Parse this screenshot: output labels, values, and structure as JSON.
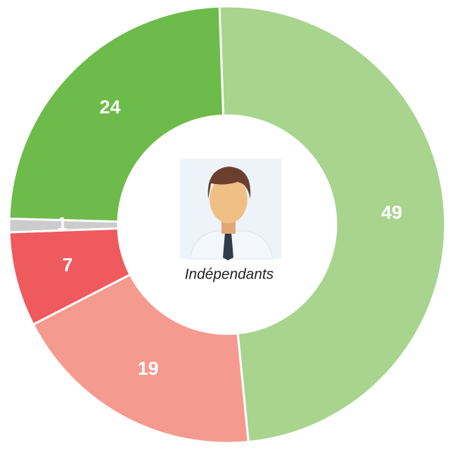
{
  "chart_data": {
    "type": "donut",
    "center_label": "Indépendants",
    "categories": [
      null,
      null,
      null,
      null,
      null
    ],
    "values": [
      49,
      19,
      7,
      1,
      24
    ],
    "colors": [
      "#a8d48e",
      "#f59a8f",
      "#ef5a5e",
      "#cccccc",
      "#6dbb4a"
    ]
  }
}
